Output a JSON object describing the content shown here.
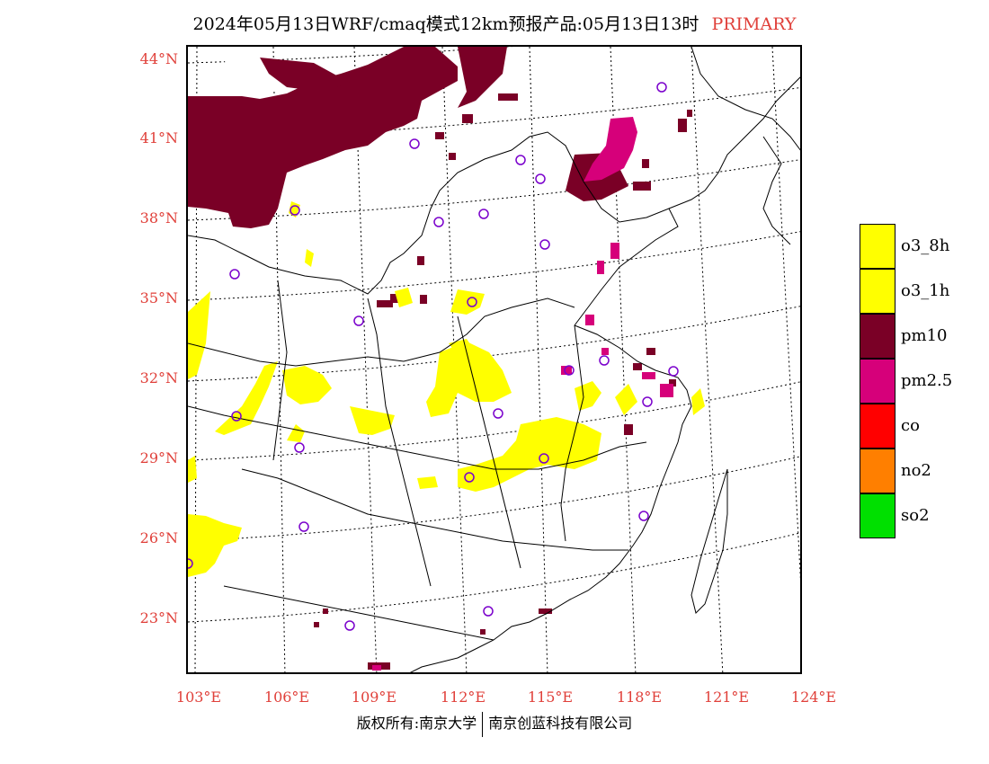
{
  "title": "2024年05月13日WRF/cmaq模式12km预报产品:05月13日13时",
  "title_tag": "PRIMARY",
  "lat_labels": [
    "44°N",
    "41°N",
    "38°N",
    "35°N",
    "32°N",
    "29°N",
    "26°N",
    "23°N"
  ],
  "lon_labels": [
    "103°E",
    "106°E",
    "109°E",
    "112°E",
    "115°E",
    "118°E",
    "121°E",
    "124°E"
  ],
  "legend": [
    {
      "label": "o3_8h",
      "color": "#ffff00"
    },
    {
      "label": "o3_1h",
      "color": "#ffff00"
    },
    {
      "label": "pm10",
      "color": "#7a0026"
    },
    {
      "label": "pm2.5",
      "color": "#d6007a"
    },
    {
      "label": "co",
      "color": "#ff0000"
    },
    {
      "label": "no2",
      "color": "#ff7f00"
    },
    {
      "label": "so2",
      "color": "#00e000"
    }
  ],
  "footer": {
    "left": "版权所有:南京大学",
    "right": "南京创蓝科技有限公司"
  },
  "colors": {
    "axis_label": "#e0403a",
    "o3": "#ffff00",
    "pm10": "#7a0026",
    "pm25": "#d6007a",
    "station": "#7a00cc"
  }
}
